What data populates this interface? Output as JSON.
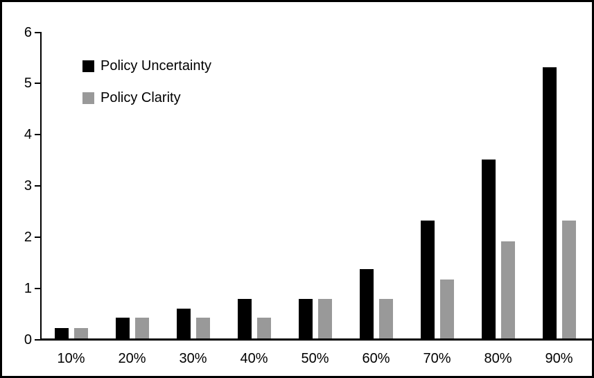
{
  "chart_data": {
    "type": "bar",
    "title": "",
    "xlabel": "",
    "ylabel": "",
    "categories": [
      "10%",
      "20%",
      "30%",
      "40%",
      "50%",
      "60%",
      "70%",
      "80%",
      "90%"
    ],
    "series": [
      {
        "name": "Policy Uncertainty",
        "color": "#000000",
        "values": [
          0.2,
          0.4,
          0.58,
          0.77,
          0.77,
          1.35,
          2.3,
          3.5,
          5.3
        ]
      },
      {
        "name": "Policy Clarity",
        "color": "#999999",
        "values": [
          0.2,
          0.4,
          0.4,
          0.4,
          0.77,
          0.77,
          1.15,
          1.9,
          2.3
        ]
      }
    ],
    "ylim": [
      0,
      6
    ],
    "yticks": [
      0,
      1,
      2,
      3,
      4,
      5,
      6
    ],
    "grid": false,
    "legend_position": "upper-left-inside",
    "frame_border_color": "#000000",
    "axis_color": "#000000",
    "background_color": "#ffffff"
  }
}
